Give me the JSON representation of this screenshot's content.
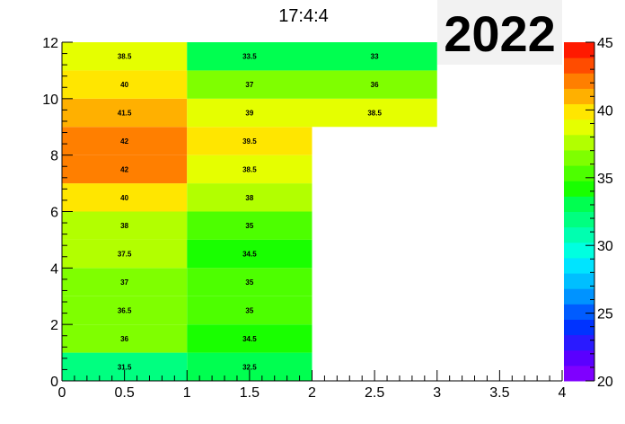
{
  "chart_data": {
    "type": "heatmap",
    "title": "17:4:4",
    "annotation": "2022",
    "xlim": [
      0,
      4
    ],
    "ylim": [
      0,
      12
    ],
    "x_ticks": [
      "0",
      "0.5",
      "1",
      "1.5",
      "2",
      "2.5",
      "3",
      "3.5",
      "4"
    ],
    "y_ticks": [
      "0",
      "2",
      "4",
      "6",
      "8",
      "10",
      "12"
    ],
    "z_range": [
      20,
      45
    ],
    "colorbar_ticks": [
      "20",
      "25",
      "30",
      "35",
      "40",
      "45"
    ],
    "cells": [
      {
        "x0": 0,
        "x1": 1,
        "y0": 0,
        "y1": 1,
        "value": 31.5,
        "label": "31.5"
      },
      {
        "x0": 1,
        "x1": 2,
        "y0": 0,
        "y1": 1,
        "value": 32.5,
        "label": "32.5"
      },
      {
        "x0": 0,
        "x1": 1,
        "y0": 1,
        "y1": 2,
        "value": 36,
        "label": "36"
      },
      {
        "x0": 1,
        "x1": 2,
        "y0": 1,
        "y1": 2,
        "value": 34.5,
        "label": "34.5"
      },
      {
        "x0": 0,
        "x1": 1,
        "y0": 2,
        "y1": 3,
        "value": 36.5,
        "label": "36.5"
      },
      {
        "x0": 1,
        "x1": 2,
        "y0": 2,
        "y1": 3,
        "value": 35,
        "label": "35"
      },
      {
        "x0": 0,
        "x1": 1,
        "y0": 3,
        "y1": 4,
        "value": 37,
        "label": "37"
      },
      {
        "x0": 1,
        "x1": 2,
        "y0": 3,
        "y1": 4,
        "value": 35,
        "label": "35"
      },
      {
        "x0": 0,
        "x1": 1,
        "y0": 4,
        "y1": 5,
        "value": 37.5,
        "label": "37.5"
      },
      {
        "x0": 1,
        "x1": 2,
        "y0": 4,
        "y1": 5,
        "value": 34.5,
        "label": "34.5"
      },
      {
        "x0": 0,
        "x1": 1,
        "y0": 5,
        "y1": 6,
        "value": 38,
        "label": "38"
      },
      {
        "x0": 1,
        "x1": 2,
        "y0": 5,
        "y1": 6,
        "value": 35,
        "label": "35"
      },
      {
        "x0": 0,
        "x1": 1,
        "y0": 6,
        "y1": 7,
        "value": 40,
        "label": "40"
      },
      {
        "x0": 1,
        "x1": 2,
        "y0": 6,
        "y1": 7,
        "value": 38,
        "label": "38"
      },
      {
        "x0": 0,
        "x1": 1,
        "y0": 7,
        "y1": 8,
        "value": 42,
        "label": "42"
      },
      {
        "x0": 1,
        "x1": 2,
        "y0": 7,
        "y1": 8,
        "value": 38.5,
        "label": "38.5"
      },
      {
        "x0": 0,
        "x1": 1,
        "y0": 8,
        "y1": 9,
        "value": 42,
        "label": "42"
      },
      {
        "x0": 1,
        "x1": 2,
        "y0": 8,
        "y1": 9,
        "value": 39.5,
        "label": "39.5"
      },
      {
        "x0": 0,
        "x1": 1,
        "y0": 9,
        "y1": 10,
        "value": 41.5,
        "label": "41.5"
      },
      {
        "x0": 1,
        "x1": 2,
        "y0": 9,
        "y1": 10,
        "value": 39,
        "label": "39"
      },
      {
        "x0": 2,
        "x1": 3,
        "y0": 9,
        "y1": 10,
        "value": 38.5,
        "label": "38.5"
      },
      {
        "x0": 0,
        "x1": 1,
        "y0": 10,
        "y1": 11,
        "value": 40,
        "label": "40"
      },
      {
        "x0": 1,
        "x1": 2,
        "y0": 10,
        "y1": 11,
        "value": 37,
        "label": "37"
      },
      {
        "x0": 2,
        "x1": 3,
        "y0": 10,
        "y1": 11,
        "value": 36,
        "label": "36"
      },
      {
        "x0": 0,
        "x1": 1,
        "y0": 11,
        "y1": 12,
        "value": 38.5,
        "label": "38.5"
      },
      {
        "x0": 1,
        "x1": 2,
        "y0": 11,
        "y1": 12,
        "value": 33.5,
        "label": "33.5"
      },
      {
        "x0": 2,
        "x1": 3,
        "y0": 11,
        "y1": 12,
        "value": 33,
        "label": "33"
      }
    ],
    "palette": [
      "#7f00ff",
      "#5a00ff",
      "#2a1aff",
      "#0033ff",
      "#005cff",
      "#0093ff",
      "#00bfff",
      "#00e4ff",
      "#00ffe0",
      "#00ffb0",
      "#00ff80",
      "#00ff50",
      "#19ff00",
      "#4dff00",
      "#7fff00",
      "#b2ff00",
      "#e5ff00",
      "#ffe600",
      "#ffb000",
      "#ff7f00",
      "#ff4c00",
      "#ff1a00"
    ]
  }
}
